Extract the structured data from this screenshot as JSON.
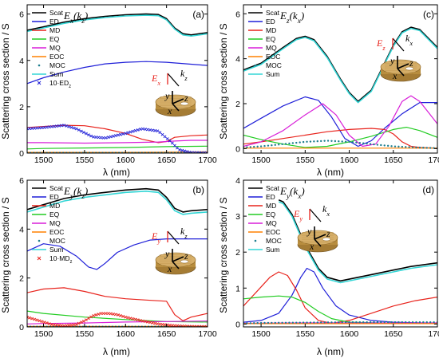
{
  "y_label": "Scattering cross section / S",
  "x_label": "λ (nm)",
  "colors": {
    "Scat": "#000000",
    "ED": "#1f1fd8",
    "MD": "#e8231c",
    "EQ": "#22cc22",
    "MQ": "#d81fd8",
    "EOC": "#ff8000",
    "MOC": "#1f7f8f",
    "Sum": "#33d6d6",
    "10·ED_z": "#2020d8",
    "10·MD_z": "#e8231c"
  },
  "chart_data": [
    {
      "panel": "(a)",
      "title": "Ex(kz)",
      "type": "line",
      "xlim": [
        1480,
        1700
      ],
      "ylim": [
        0,
        6.4
      ],
      "xticks": [
        "1500",
        "1550",
        "1600",
        "1650",
        "1700"
      ],
      "yticks": [
        "0",
        "2",
        "4",
        "6"
      ],
      "legend": [
        "Scat",
        "ED",
        "MD",
        "EQ",
        "MQ",
        "EOC",
        "MOC",
        "Sum",
        "10·ED_z"
      ],
      "inset": {
        "field": "Ex",
        "k": "kz",
        "axes": [
          "x",
          "y",
          "z"
        ]
      },
      "series": [
        {
          "name": "Scat",
          "x": [
            1480,
            1500,
            1525,
            1550,
            1575,
            1600,
            1625,
            1640,
            1650,
            1660,
            1670,
            1680,
            1700
          ],
          "y": [
            5.3,
            5.45,
            5.65,
            5.8,
            5.9,
            5.97,
            6.0,
            5.98,
            5.8,
            5.4,
            5.15,
            5.1,
            5.2
          ]
        },
        {
          "name": "Sum",
          "x": [
            1480,
            1500,
            1525,
            1550,
            1575,
            1600,
            1625,
            1640,
            1650,
            1660,
            1670,
            1680,
            1700
          ],
          "y": [
            5.25,
            5.4,
            5.6,
            5.75,
            5.85,
            5.92,
            5.95,
            5.93,
            5.75,
            5.35,
            5.1,
            5.05,
            5.15
          ]
        },
        {
          "name": "ED",
          "x": [
            1480,
            1500,
            1525,
            1550,
            1575,
            1600,
            1625,
            1650,
            1675,
            1700
          ],
          "y": [
            3.0,
            3.25,
            3.5,
            3.7,
            3.85,
            3.92,
            3.95,
            3.92,
            3.85,
            3.78
          ]
        },
        {
          "name": "MD",
          "x": [
            1480,
            1500,
            1525,
            1550,
            1575,
            1600,
            1620,
            1640,
            1650,
            1660,
            1680,
            1700
          ],
          "y": [
            1.1,
            1.15,
            1.2,
            1.18,
            1.05,
            0.85,
            0.6,
            0.45,
            0.5,
            0.68,
            0.75,
            0.78
          ]
        },
        {
          "name": "EQ",
          "x": [
            1480,
            1500,
            1550,
            1600,
            1650,
            1700
          ],
          "y": [
            0.18,
            0.2,
            0.22,
            0.24,
            0.28,
            0.3
          ]
        },
        {
          "name": "MQ",
          "x": [
            1480,
            1500,
            1550,
            1600,
            1640,
            1660,
            1680,
            1700
          ],
          "y": [
            0.45,
            0.45,
            0.43,
            0.45,
            0.48,
            0.52,
            0.55,
            0.55
          ]
        },
        {
          "name": "EOC",
          "x": [
            1480,
            1550,
            1600,
            1650,
            1700
          ],
          "y": [
            0.03,
            0.03,
            0.03,
            0.04,
            0.05
          ]
        },
        {
          "name": "MOC",
          "x": [
            1480,
            1550,
            1600,
            1650,
            1700
          ],
          "y": [
            0.01,
            0.01,
            0.01,
            0.01,
            0.01
          ]
        },
        {
          "name": "10·ED_z",
          "x": [
            1480,
            1500,
            1525,
            1540,
            1560,
            1575,
            1600,
            1620,
            1640,
            1655,
            1665,
            1680,
            1700
          ],
          "y": [
            1.05,
            1.1,
            1.2,
            1.05,
            0.7,
            0.65,
            0.85,
            1.05,
            0.95,
            0.5,
            0.15,
            0.02,
            0.01
          ]
        }
      ]
    },
    {
      "panel": "(b)",
      "title": "Ey(kz)",
      "type": "line",
      "xlim": [
        1480,
        1700
      ],
      "ylim": [
        0,
        6.0
      ],
      "xticks": [
        "1500",
        "1550",
        "1600",
        "1650",
        "1700"
      ],
      "yticks": [
        "0",
        "2",
        "4",
        "6"
      ],
      "legend": [
        "Scat",
        "ED",
        "MD",
        "EQ",
        "MQ",
        "EOC",
        "MOC",
        "Sum",
        "10·MD_z"
      ],
      "inset": {
        "field": "Ey",
        "k": "kz",
        "axes": [
          "x",
          "y",
          "z"
        ]
      },
      "series": [
        {
          "name": "Scat",
          "x": [
            1480,
            1500,
            1525,
            1550,
            1575,
            1600,
            1625,
            1640,
            1650,
            1660,
            1670,
            1680,
            1700
          ],
          "y": [
            4.8,
            5.0,
            5.25,
            5.4,
            5.5,
            5.6,
            5.65,
            5.6,
            5.3,
            4.85,
            4.7,
            4.75,
            4.8
          ]
        },
        {
          "name": "Sum",
          "x": [
            1480,
            1500,
            1525,
            1550,
            1575,
            1600,
            1625,
            1640,
            1650,
            1660,
            1670,
            1680,
            1700
          ],
          "y": [
            4.7,
            4.9,
            5.15,
            5.3,
            5.4,
            5.5,
            5.55,
            5.5,
            5.2,
            4.75,
            4.6,
            4.65,
            4.7
          ]
        },
        {
          "name": "ED",
          "x": [
            1480,
            1500,
            1520,
            1540,
            1555,
            1565,
            1575,
            1590,
            1610,
            1630,
            1650,
            1670,
            1700
          ],
          "y": [
            3.1,
            3.4,
            3.3,
            2.9,
            2.45,
            2.35,
            2.6,
            3.05,
            3.35,
            3.55,
            3.6,
            3.6,
            3.6
          ]
        },
        {
          "name": "MD",
          "x": [
            1480,
            1500,
            1525,
            1550,
            1575,
            1600,
            1625,
            1650,
            1660,
            1670,
            1680,
            1700
          ],
          "y": [
            1.4,
            1.55,
            1.6,
            1.45,
            1.25,
            1.15,
            1.1,
            1.05,
            0.5,
            0.25,
            0.4,
            0.55
          ]
        },
        {
          "name": "EQ",
          "x": [
            1480,
            1500,
            1550,
            1600,
            1650,
            1700
          ],
          "y": [
            0.65,
            0.55,
            0.4,
            0.3,
            0.22,
            0.2
          ]
        },
        {
          "name": "MQ",
          "x": [
            1480,
            1500,
            1550,
            1600,
            1650,
            1700
          ],
          "y": [
            0.12,
            0.14,
            0.16,
            0.2,
            0.22,
            0.24
          ]
        },
        {
          "name": "EOC",
          "x": [
            1480,
            1550,
            1600,
            1650,
            1700
          ],
          "y": [
            0.02,
            0.02,
            0.02,
            0.02,
            0.02
          ]
        },
        {
          "name": "MOC",
          "x": [
            1480,
            1550,
            1600,
            1650,
            1700
          ],
          "y": [
            0.01,
            0.01,
            0.01,
            0.01,
            0.01
          ]
        },
        {
          "name": "10·MD_z",
          "x": [
            1480,
            1495,
            1510,
            1525,
            1540,
            1550,
            1560,
            1570,
            1580,
            1590,
            1600,
            1620,
            1640,
            1660,
            1680,
            1700
          ],
          "y": [
            0.4,
            0.25,
            0.1,
            0.05,
            0.1,
            0.25,
            0.45,
            0.55,
            0.55,
            0.5,
            0.4,
            0.25,
            0.12,
            0.05,
            0.02,
            0.01
          ]
        }
      ]
    },
    {
      "panel": "(c)",
      "title": "Ez(kx)",
      "type": "line",
      "xlim": [
        1480,
        1700
      ],
      "ylim": [
        -0.2,
        6.4
      ],
      "xticks": [
        "1500",
        "1550",
        "1600",
        "1650",
        "1700"
      ],
      "yticks": [
        "0",
        "2",
        "4",
        "6"
      ],
      "legend": [
        "Scat",
        "ED",
        "MD",
        "EQ",
        "MQ",
        "EOC",
        "MOC",
        "Sum"
      ],
      "inset": {
        "field": "Ez",
        "k": "kx",
        "axes": [
          "x",
          "y",
          "z"
        ]
      },
      "series": [
        {
          "name": "Scat",
          "x": [
            1480,
            1500,
            1525,
            1540,
            1550,
            1560,
            1575,
            1590,
            1600,
            1610,
            1625,
            1640,
            1650,
            1660,
            1670,
            1680,
            1690,
            1700
          ],
          "y": [
            3.5,
            3.8,
            4.5,
            4.9,
            5.0,
            4.85,
            4.1,
            3.1,
            2.5,
            2.1,
            2.6,
            3.8,
            4.6,
            5.2,
            5.4,
            5.3,
            4.9,
            4.5
          ]
        },
        {
          "name": "Sum",
          "x": [
            1480,
            1500,
            1525,
            1540,
            1550,
            1560,
            1575,
            1590,
            1600,
            1610,
            1625,
            1640,
            1650,
            1660,
            1670,
            1680,
            1690,
            1700
          ],
          "y": [
            3.45,
            3.75,
            4.45,
            4.85,
            4.95,
            4.8,
            4.05,
            3.05,
            2.45,
            2.05,
            2.55,
            3.75,
            4.55,
            5.15,
            5.35,
            5.25,
            4.85,
            4.45
          ]
        },
        {
          "name": "ED",
          "x": [
            1480,
            1500,
            1525,
            1550,
            1565,
            1580,
            1595,
            1610,
            1625,
            1640,
            1660,
            1680,
            1700
          ],
          "y": [
            0.9,
            1.35,
            1.9,
            2.3,
            2.15,
            1.4,
            0.45,
            0.1,
            0.35,
            0.9,
            1.55,
            2.05,
            2.05
          ]
        },
        {
          "name": "MD",
          "x": [
            1480,
            1500,
            1525,
            1550,
            1575,
            1600,
            1625,
            1640,
            1650,
            1660,
            1670,
            1680,
            1700
          ],
          "y": [
            0.2,
            0.3,
            0.45,
            0.6,
            0.75,
            0.85,
            0.9,
            0.85,
            0.65,
            0.3,
            0.1,
            0.05,
            0.02
          ]
        },
        {
          "name": "EQ",
          "x": [
            1480,
            1500,
            1525,
            1550,
            1575,
            1600,
            1625,
            1650,
            1665,
            1680,
            1700
          ],
          "y": [
            0.6,
            0.4,
            0.2,
            0.05,
            0.1,
            0.3,
            0.55,
            0.85,
            0.95,
            0.8,
            0.5
          ]
        },
        {
          "name": "MQ",
          "x": [
            1480,
            1500,
            1525,
            1550,
            1570,
            1585,
            1600,
            1615,
            1630,
            1645,
            1660,
            1670,
            1680,
            1690,
            1700
          ],
          "y": [
            0.1,
            0.3,
            0.8,
            1.5,
            2.0,
            1.5,
            0.6,
            0.1,
            0.2,
            1.0,
            2.1,
            2.35,
            2.1,
            1.6,
            1.1
          ]
        },
        {
          "name": "EOC",
          "x": [
            1480,
            1550,
            1600,
            1650,
            1700
          ],
          "y": [
            0.02,
            0.02,
            0.02,
            0.02,
            0.02
          ]
        },
        {
          "name": "MOC",
          "x": [
            1480,
            1500,
            1525,
            1550,
            1575,
            1600,
            1625,
            1650,
            1675,
            1700
          ],
          "y": [
            0.05,
            0.1,
            0.2,
            0.3,
            0.35,
            0.3,
            0.2,
            0.1,
            0.05,
            0.02
          ]
        }
      ]
    },
    {
      "panel": "(d)",
      "title": "Ey(kx)",
      "type": "line",
      "xlim": [
        1480,
        1700
      ],
      "ylim": [
        -0.08,
        4.0
      ],
      "xticks": [
        "1500",
        "1550",
        "1600",
        "1650",
        "1700"
      ],
      "yticks": [
        "0",
        "1",
        "2",
        "3",
        "4"
      ],
      "legend": [
        "Scat",
        "ED",
        "MD",
        "EQ",
        "MQ",
        "EOC",
        "MOC",
        "Sum"
      ],
      "inset": {
        "field": "Ey",
        "k": "kx",
        "axes": [
          "x",
          "y",
          "z"
        ]
      },
      "series": [
        {
          "name": "Scat",
          "x": [
            1520,
            1525,
            1535,
            1550,
            1565,
            1575,
            1590,
            1610,
            1630,
            1650,
            1670,
            1700
          ],
          "y": [
            3.45,
            3.4,
            3.05,
            2.2,
            1.55,
            1.3,
            1.2,
            1.3,
            1.4,
            1.5,
            1.6,
            1.7
          ]
        },
        {
          "name": "Sum",
          "x": [
            1520,
            1525,
            1535,
            1550,
            1565,
            1575,
            1590,
            1610,
            1630,
            1650,
            1670,
            1700
          ],
          "y": [
            3.4,
            3.35,
            3.0,
            2.15,
            1.5,
            1.25,
            1.15,
            1.25,
            1.35,
            1.45,
            1.55,
            1.65
          ]
        },
        {
          "name": "ED",
          "x": [
            1480,
            1500,
            1520,
            1535,
            1545,
            1552,
            1560,
            1570,
            1585,
            1600,
            1625,
            1650,
            1700
          ],
          "y": [
            0.05,
            0.1,
            0.3,
            0.8,
            1.3,
            1.55,
            1.45,
            1.0,
            0.5,
            0.25,
            0.1,
            0.05,
            0.02
          ]
        },
        {
          "name": "MD",
          "x": [
            1480,
            1495,
            1510,
            1520,
            1530,
            1540,
            1550,
            1565,
            1580,
            1600,
            1625,
            1650,
            1675,
            1700
          ],
          "y": [
            0.5,
            0.9,
            1.3,
            1.45,
            1.35,
            0.95,
            0.45,
            0.1,
            0.02,
            0.1,
            0.3,
            0.5,
            0.65,
            0.75
          ]
        },
        {
          "name": "EQ",
          "x": [
            1480,
            1500,
            1520,
            1535,
            1550,
            1565,
            1580,
            1600,
            1650,
            1700
          ],
          "y": [
            0.7,
            0.75,
            0.78,
            0.75,
            0.6,
            0.35,
            0.15,
            0.05,
            0.02,
            0.01
          ]
        },
        {
          "name": "MQ",
          "x": [
            1480,
            1550,
            1600,
            1650,
            1700
          ],
          "y": [
            0.02,
            0.03,
            0.03,
            0.03,
            0.03
          ]
        },
        {
          "name": "EOC",
          "x": [
            1480,
            1550,
            1600,
            1650,
            1700
          ],
          "y": [
            0.01,
            0.01,
            0.01,
            0.01,
            0.01
          ]
        },
        {
          "name": "MOC",
          "x": [
            1480,
            1500,
            1550,
            1600,
            1650,
            1700
          ],
          "y": [
            0.02,
            0.03,
            0.04,
            0.05,
            0.05,
            0.05
          ]
        }
      ]
    }
  ]
}
